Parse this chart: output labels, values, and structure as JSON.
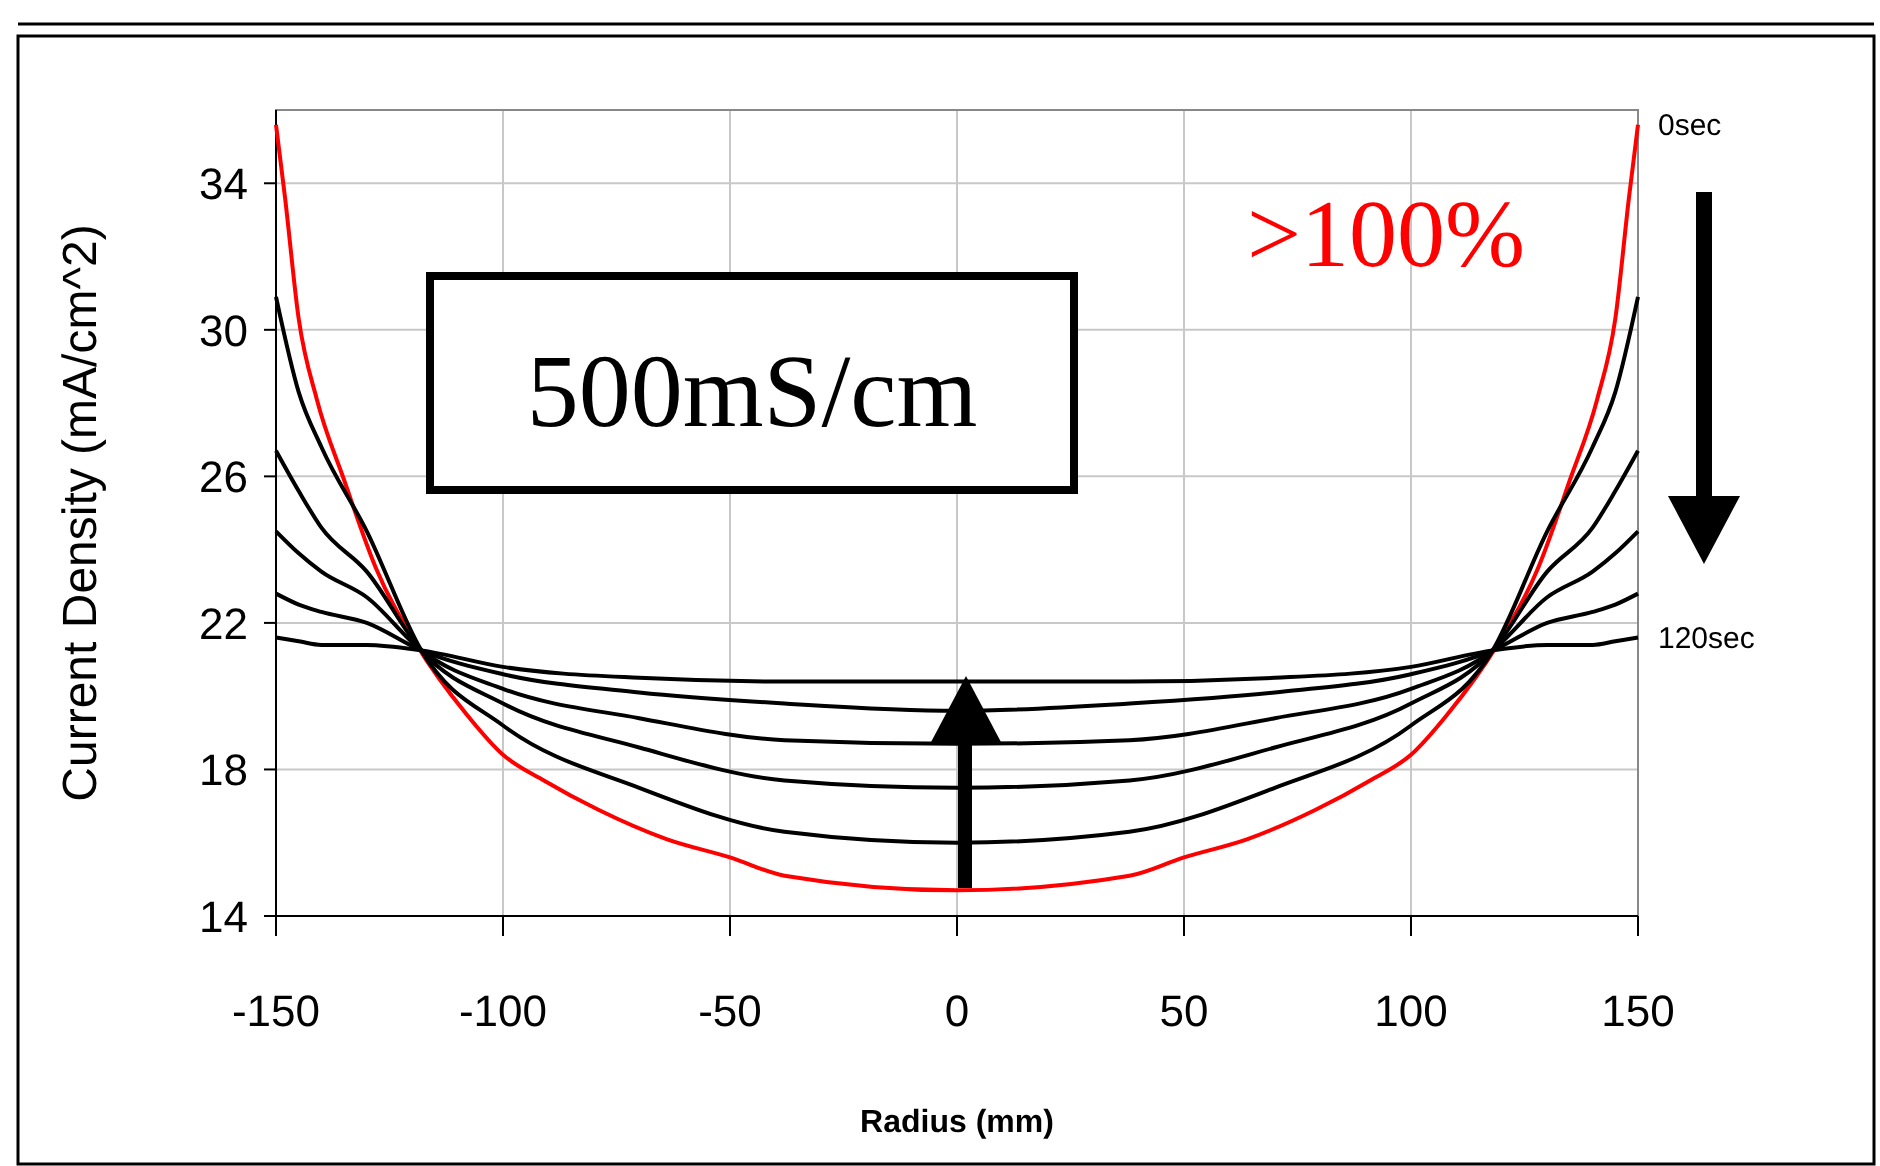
{
  "chart_data": {
    "type": "line",
    "xlabel": "Radius (mm)",
    "ylabel": "Current Density (mA/cm^2)",
    "x": [
      -150,
      -145,
      -140,
      -130,
      -118,
      -100,
      -70,
      -38,
      0,
      38,
      70,
      100,
      118,
      130,
      140,
      145,
      150
    ],
    "xlim": [
      -150,
      150
    ],
    "xticks": [
      -150,
      -100,
      -50,
      0,
      50,
      100,
      150
    ],
    "ylim": [
      14,
      36
    ],
    "yticks": [
      14,
      18,
      22,
      26,
      30,
      34
    ],
    "grid": true,
    "marker": "none",
    "line_style": "solid",
    "series": [
      {
        "name": "0sec",
        "color": "#ff0000",
        "x": [
          -150,
          -148,
          -145,
          -141,
          -135,
          -128,
          -119,
          -108,
          -100,
          -91,
          -79,
          -64,
          -50,
          -38,
          0,
          38,
          50,
          64,
          79,
          91,
          100,
          108,
          119,
          128,
          135,
          141,
          145,
          148,
          150
        ],
        "values": [
          35.6,
          33.6,
          30.3,
          28.1,
          25.9,
          23.5,
          21.4,
          19.5,
          18.4,
          17.7,
          16.9,
          16.1,
          15.6,
          15.1,
          14.7,
          15.1,
          15.6,
          16.1,
          16.9,
          17.7,
          18.4,
          19.5,
          21.4,
          23.5,
          25.9,
          28.1,
          30.3,
          33.6,
          35.6
        ]
      },
      {
        "color": "#000000",
        "values": [
          30.9,
          28.3,
          26.8,
          24.5,
          21.25,
          19.2,
          17.5,
          16.3,
          16.0,
          16.3,
          17.5,
          19.2,
          21.25,
          24.5,
          26.8,
          28.3,
          30.9
        ]
      },
      {
        "color": "#000000",
        "values": [
          26.7,
          25.6,
          24.6,
          23.4,
          21.25,
          19.8,
          18.6,
          17.7,
          17.5,
          17.7,
          18.6,
          19.8,
          21.25,
          23.4,
          24.6,
          25.6,
          26.7
        ]
      },
      {
        "color": "#000000",
        "values": [
          24.5,
          23.9,
          23.4,
          22.7,
          21.25,
          20.2,
          19.4,
          18.8,
          18.7,
          18.8,
          19.4,
          20.2,
          21.25,
          22.7,
          23.4,
          23.9,
          24.5
        ]
      },
      {
        "color": "#000000",
        "values": [
          22.8,
          22.5,
          22.3,
          22.0,
          21.25,
          20.6,
          20.1,
          19.8,
          19.6,
          19.8,
          20.1,
          20.6,
          21.25,
          22.0,
          22.3,
          22.5,
          22.8
        ]
      },
      {
        "name": "120sec",
        "color": "#000000",
        "values": [
          21.6,
          21.5,
          21.4,
          21.4,
          21.25,
          20.8,
          20.5,
          20.4,
          20.4,
          20.4,
          20.5,
          20.8,
          21.25,
          21.4,
          21.4,
          21.5,
          21.6
        ]
      }
    ],
    "annotations": [
      "500mS/cm",
      ">100%"
    ]
  }
}
